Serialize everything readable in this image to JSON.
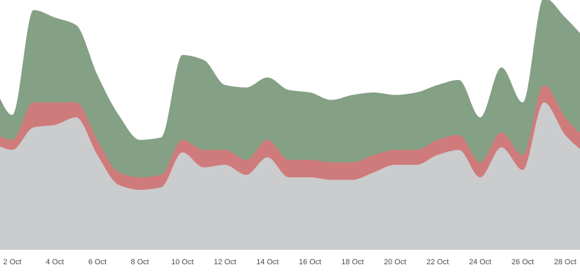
{
  "chart_data": {
    "type": "area",
    "stacked": true,
    "x": [
      "1 Oct",
      "2 Oct",
      "3 Oct",
      "4 Oct",
      "5 Oct",
      "6 Oct",
      "7 Oct",
      "8 Oct",
      "9 Oct",
      "10 Oct",
      "11 Oct",
      "12 Oct",
      "13 Oct",
      "14 Oct",
      "15 Oct",
      "16 Oct",
      "17 Oct",
      "18 Oct",
      "19 Oct",
      "20 Oct",
      "21 Oct",
      "22 Oct",
      "23 Oct",
      "24 Oct",
      "25 Oct",
      "26 Oct",
      "27 Oct",
      "28 Oct",
      "29 Oct"
    ],
    "x_tick_labels": [
      "2 Oct",
      "4 Oct",
      "6 Oct",
      "8 Oct",
      "10 Oct",
      "12 Oct",
      "14 Oct",
      "16 Oct",
      "18 Oct",
      "20 Oct",
      "22 Oct",
      "24 Oct",
      "26 Oct",
      "28 Oct"
    ],
    "ylim": [
      0,
      100
    ],
    "grid": false,
    "series": [
      {
        "color": "#cbccce",
        "values": [
          43,
          40,
          49,
          50,
          53,
          38,
          26,
          24,
          25,
          39,
          33,
          34,
          30,
          37,
          29,
          29,
          28,
          28,
          31,
          34,
          34,
          38,
          40,
          29,
          41,
          32,
          59,
          46,
          38
        ]
      },
      {
        "color": "#cf7b7b",
        "values": [
          4,
          4,
          10,
          9,
          6,
          6,
          5,
          5,
          5,
          5,
          7,
          6,
          6,
          7,
          7,
          7,
          7,
          7,
          7,
          6,
          6,
          6,
          6,
          6,
          6,
          6,
          7,
          7,
          6
        ]
      },
      {
        "color": "#84a085",
        "values": [
          21,
          10,
          37,
          34,
          31,
          26,
          23,
          15,
          15,
          34,
          36,
          26,
          29,
          25,
          28,
          27,
          25,
          27,
          25,
          22,
          23,
          22,
          22,
          18,
          26,
          21,
          35,
          40,
          40
        ]
      }
    ]
  }
}
